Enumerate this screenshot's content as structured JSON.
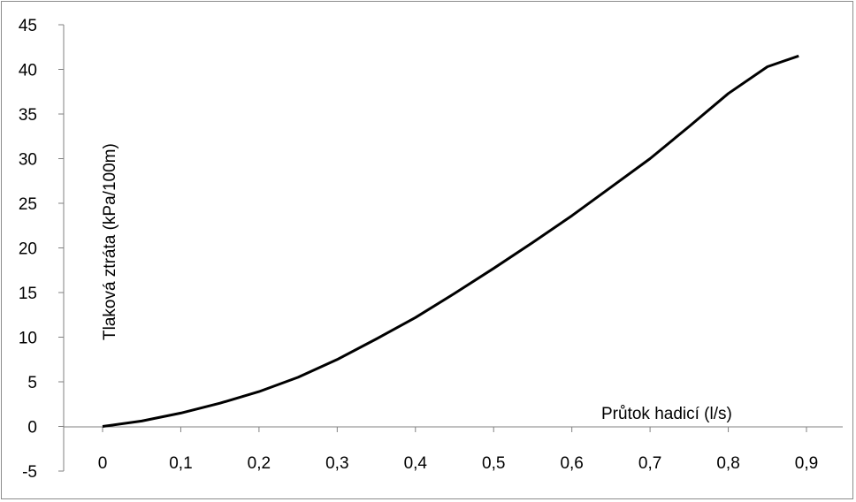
{
  "chart_data": {
    "type": "line",
    "title": "",
    "xlabel": "Průtok hadicí (l/s)",
    "ylabel": "Tlaková ztráta (kPa/100m)",
    "xlim": [
      0,
      0.9
    ],
    "ylim": [
      -5,
      45
    ],
    "xticks": [
      "0",
      "0,1",
      "0,2",
      "0,3",
      "0,4",
      "0,5",
      "0,6",
      "0,7",
      "0,8",
      "0,9"
    ],
    "yticks": [
      "-5",
      "0",
      "5",
      "10",
      "15",
      "20",
      "25",
      "30",
      "35",
      "40",
      "45"
    ],
    "grid": false,
    "legend": false,
    "colors": {
      "line": "#000000",
      "axis": "#808080",
      "frame": "#8c8c8c"
    },
    "series": [
      {
        "x": [
          0,
          0.05,
          0.1,
          0.15,
          0.2,
          0.25,
          0.3,
          0.35,
          0.4,
          0.45,
          0.5,
          0.55,
          0.6,
          0.65,
          0.7,
          0.75,
          0.8,
          0.85,
          0.89
        ],
        "y": [
          0,
          0.6,
          1.5,
          2.6,
          3.9,
          5.5,
          7.5,
          9.8,
          12.2,
          14.9,
          17.7,
          20.6,
          23.6,
          26.8,
          30.0,
          33.6,
          37.3,
          40.3,
          41.5
        ]
      }
    ]
  }
}
